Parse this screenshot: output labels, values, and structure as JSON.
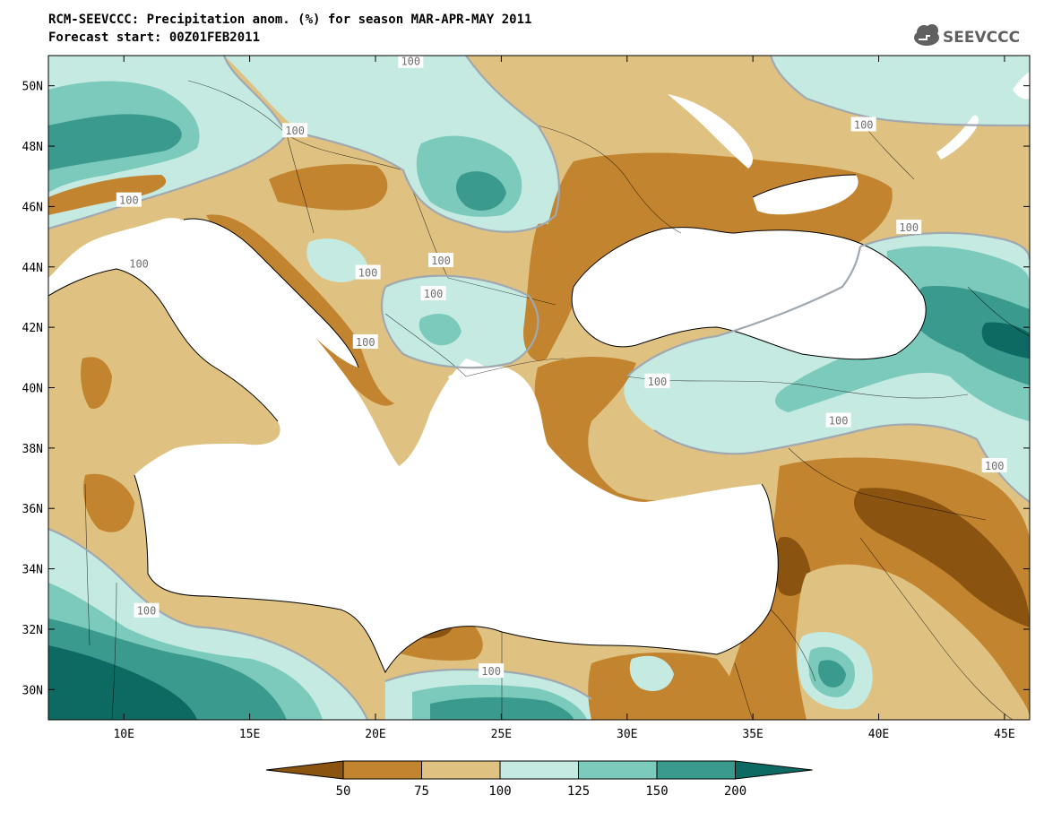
{
  "header": {
    "title_line1": "RCM-SEEVCCC: Precipitation anom. (%) for season MAR-APR-MAY 2011",
    "title_line2": "Forecast start: 00Z01FEB2011"
  },
  "logo": {
    "text": "SEEVCCC",
    "icon": "cloud-icon"
  },
  "map": {
    "extent": {
      "lon": [
        7,
        46
      ],
      "lat": [
        29,
        51
      ]
    },
    "lon_ticks": [
      {
        "value": 10,
        "label": "10E"
      },
      {
        "value": 15,
        "label": "15E"
      },
      {
        "value": 20,
        "label": "20E"
      },
      {
        "value": 25,
        "label": "25E"
      },
      {
        "value": 30,
        "label": "30E"
      },
      {
        "value": 35,
        "label": "35E"
      },
      {
        "value": 40,
        "label": "40E"
      },
      {
        "value": 45,
        "label": "45E"
      }
    ],
    "lat_ticks": [
      {
        "value": 30,
        "label": "30N"
      },
      {
        "value": 32,
        "label": "32N"
      },
      {
        "value": 34,
        "label": "34N"
      },
      {
        "value": 36,
        "label": "36N"
      },
      {
        "value": 38,
        "label": "38N"
      },
      {
        "value": 40,
        "label": "40N"
      },
      {
        "value": 42,
        "label": "42N"
      },
      {
        "value": 44,
        "label": "44N"
      },
      {
        "value": 46,
        "label": "46N"
      },
      {
        "value": 48,
        "label": "48N"
      },
      {
        "value": 50,
        "label": "50N"
      }
    ],
    "contour_labels": [
      {
        "text": "100",
        "lon": 21.4,
        "lat": 50.8
      },
      {
        "text": "100",
        "lon": 16.8,
        "lat": 48.5
      },
      {
        "text": "100",
        "lon": 10.2,
        "lat": 46.2
      },
      {
        "text": "100",
        "lon": 10.6,
        "lat": 44.1
      },
      {
        "text": "100",
        "lon": 19.7,
        "lat": 43.8
      },
      {
        "text": "100",
        "lon": 22.6,
        "lat": 44.2
      },
      {
        "text": "100",
        "lon": 22.3,
        "lat": 43.1
      },
      {
        "text": "100",
        "lon": 19.6,
        "lat": 41.5
      },
      {
        "text": "100",
        "lon": 31.2,
        "lat": 40.2
      },
      {
        "text": "100",
        "lon": 38.4,
        "lat": 38.9
      },
      {
        "text": "100",
        "lon": 39.4,
        "lat": 48.7
      },
      {
        "text": "100",
        "lon": 41.2,
        "lat": 45.3
      },
      {
        "text": "100",
        "lon": 44.6,
        "lat": 37.4
      },
      {
        "text": "100",
        "lon": 10.9,
        "lat": 32.6
      },
      {
        "text": "100",
        "lon": 24.6,
        "lat": 30.6
      }
    ]
  },
  "legend": {
    "levels": [
      "50",
      "75",
      "100",
      "125",
      "150",
      "200"
    ],
    "colors": [
      "#8a5310",
      "#c2842f",
      "#dfc282",
      "#c4eae1",
      "#7bcabc",
      "#3a9a8e",
      "#0c6a63"
    ]
  },
  "palette": {
    "anom_lt50": "#8a5310",
    "anom_50_75": "#c2842f",
    "anom_75_100": "#dfc282",
    "anom_100_125": "#c4eae1",
    "anom_125_150": "#7bcabc",
    "anom_150_200": "#3a9a8e",
    "anom_gt200": "#0c6a63",
    "sea": "#ffffff",
    "contour": "#a0a8b0"
  }
}
